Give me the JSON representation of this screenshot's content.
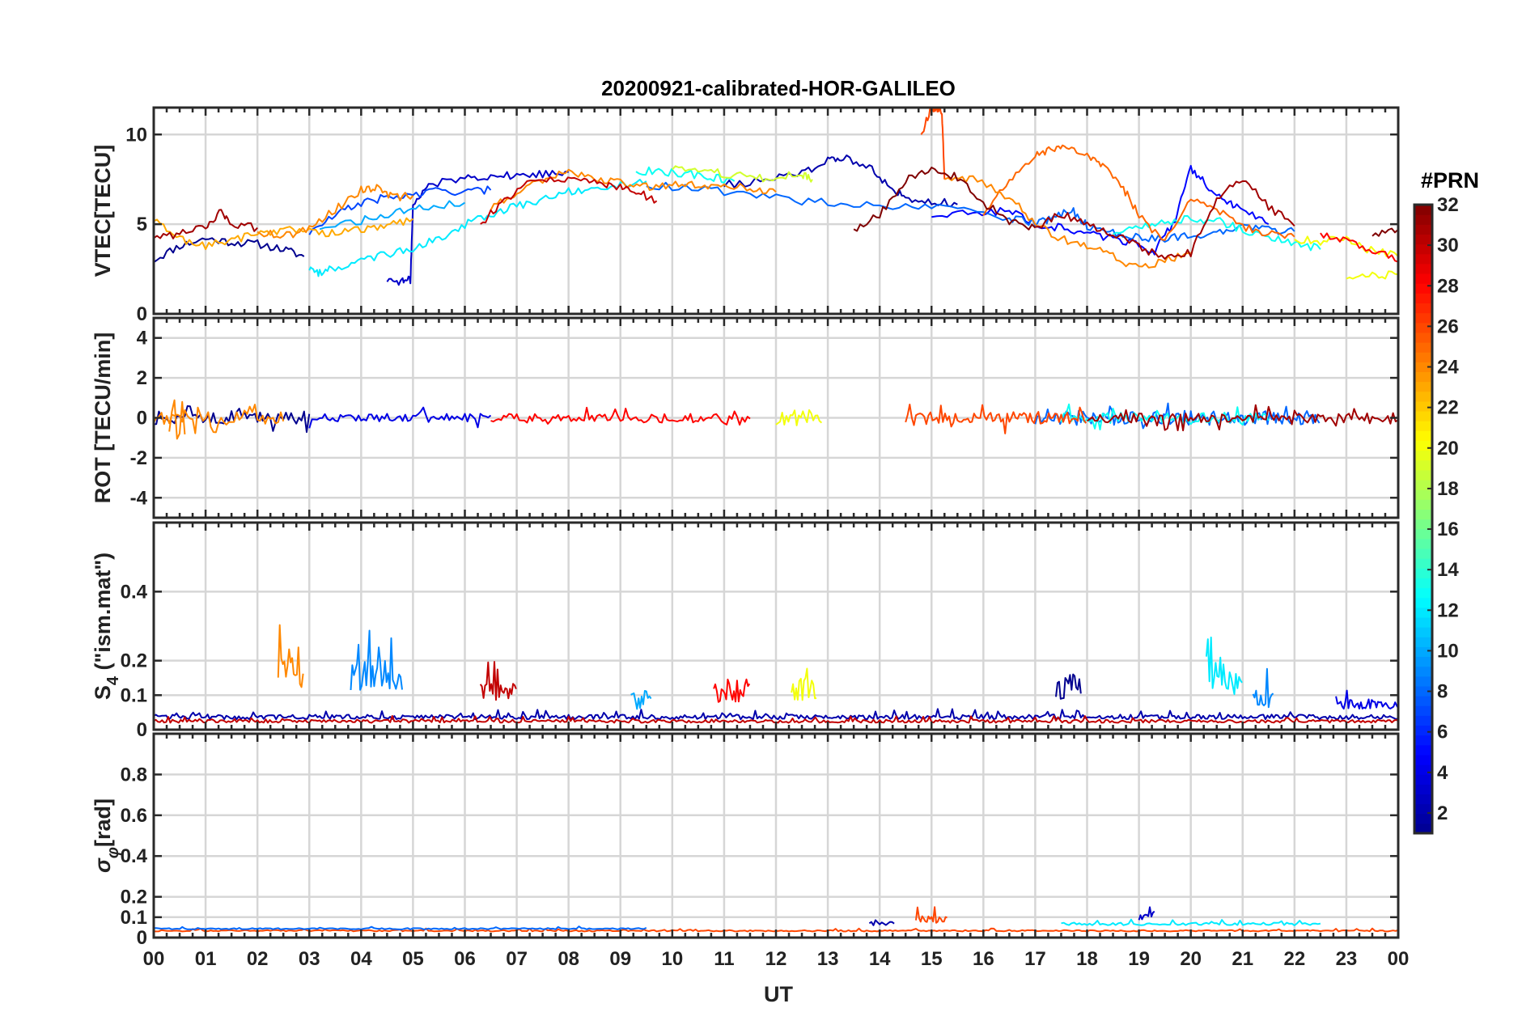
{
  "title": "20200921-calibrated-HOR-GALILEO",
  "x_axis": {
    "label": "UT",
    "tick_labels": [
      "00",
      "01",
      "02",
      "03",
      "04",
      "05",
      "06",
      "07",
      "08",
      "09",
      "10",
      "11",
      "12",
      "13",
      "14",
      "15",
      "16",
      "17",
      "18",
      "19",
      "20",
      "21",
      "22",
      "23",
      "00"
    ],
    "range_hours": [
      0,
      24
    ]
  },
  "colorbar": {
    "label": "#PRN",
    "range": [
      1,
      32
    ],
    "tick_values": [
      2,
      4,
      6,
      8,
      10,
      12,
      14,
      16,
      18,
      20,
      22,
      24,
      26,
      28,
      30,
      32
    ],
    "tick_labels": [
      "2",
      "4",
      "6",
      "8",
      "10",
      "12",
      "14",
      "16",
      "18",
      "20",
      "22",
      "24",
      "26",
      "28",
      "30",
      "32"
    ],
    "colors": [
      "#00008f",
      "#0000ff",
      "#0080ff",
      "#00ffff",
      "#80ff80",
      "#ffff00",
      "#ff8000",
      "#ff0000",
      "#800000"
    ]
  },
  "chart_data": [
    {
      "id": "vtec",
      "type": "line",
      "ylabel": "VTEC[TECU]",
      "ylim": [
        0,
        11.5
      ],
      "yticks": [
        0,
        5,
        10
      ],
      "ytick_labels": [
        "0",
        "5",
        "10"
      ],
      "series": [
        {
          "prn": 1,
          "x": [
            0,
            0.5,
            1,
            1.5,
            2,
            2.5,
            2.9
          ],
          "y": [
            3.0,
            3.8,
            4.2,
            4.0,
            3.9,
            3.6,
            3.2
          ]
        },
        {
          "prn": 3,
          "x": [
            4.5,
            4.8,
            4.95,
            5,
            5.3,
            6,
            6.5,
            7,
            7.5,
            8
          ],
          "y": [
            1.9,
            1.8,
            1.9,
            6.0,
            7.2,
            7.6,
            7.7,
            7.7,
            7.8,
            7.9
          ]
        },
        {
          "prn": 2,
          "x": [
            11,
            11.8,
            12.5,
            13,
            13.3,
            13.8,
            14.2,
            14.5,
            15,
            15.5
          ],
          "y": [
            7.2,
            7.4,
            7.9,
            8.5,
            8.7,
            8.3,
            7.0,
            6.5,
            6.3,
            6.1
          ]
        },
        {
          "prn": 5,
          "x": [
            15,
            15.8,
            16.5,
            17,
            17.5,
            18,
            18.5,
            19,
            19.3,
            19.7,
            20,
            20.3,
            20.7,
            21,
            21.5
          ],
          "y": [
            5.5,
            5.6,
            5.8,
            5.0,
            4.8,
            4.5,
            4.2,
            3.9,
            3.5,
            5.2,
            8.1,
            7.2,
            6.2,
            5.8,
            5.0
          ]
        },
        {
          "prn": 7,
          "x": [
            3,
            3.5,
            4,
            4.5,
            5,
            5.5,
            6,
            6.5
          ],
          "y": [
            4.5,
            5.5,
            6.2,
            6.5,
            6.6,
            6.9,
            6.8,
            6.9
          ]
        },
        {
          "prn": 8,
          "x": [
            9.5,
            10.5,
            11.5,
            12.5,
            13.5,
            14.5,
            15.5,
            16.5,
            17,
            17.3,
            17.7,
            18,
            18.5,
            19,
            19.5,
            20,
            20.5,
            21,
            21.5,
            22
          ],
          "y": [
            7.2,
            7.0,
            6.6,
            6.3,
            6.1,
            6.0,
            5.8,
            5.3,
            5.1,
            5.3,
            5.8,
            4.9,
            4.5,
            4.3,
            4.2,
            4.4,
            4.5,
            4.8,
            4.7,
            4.6
          ]
        },
        {
          "prn": 10,
          "x": [
            3.2,
            4,
            4.6,
            5.2,
            6
          ],
          "y": [
            4.8,
            5.2,
            5.6,
            5.9,
            6.2
          ]
        },
        {
          "prn": 12,
          "x": [
            3.0,
            3.2,
            3.5,
            4,
            4.5,
            5,
            5.5,
            6,
            6.5,
            7,
            7.5,
            8,
            8.5,
            9,
            9.5
          ],
          "y": [
            2.5,
            2.3,
            2.6,
            3.0,
            3.3,
            3.7,
            4.2,
            5.0,
            5.6,
            6.0,
            6.4,
            6.8,
            7.0,
            7.2,
            7.4
          ]
        },
        {
          "prn": 13,
          "x": [
            9.3,
            9.8,
            10.3,
            10.8,
            11.2
          ],
          "y": [
            8.0,
            7.9,
            7.8,
            7.6,
            7.4
          ]
        },
        {
          "prn": 13,
          "x": [
            18.5,
            19,
            19.5,
            20,
            20.5,
            21,
            21.5,
            22,
            22.5
          ],
          "y": [
            4.5,
            4.8,
            5.1,
            5.3,
            5.2,
            4.7,
            4.2,
            4.0,
            3.6
          ]
        },
        {
          "prn": 19,
          "x": [
            10,
            10.5,
            11,
            11.5,
            12,
            12.5,
            12.7
          ],
          "y": [
            8.1,
            8.0,
            7.8,
            7.6,
            7.6,
            7.8,
            7.5
          ]
        },
        {
          "prn": 20,
          "x": [
            22,
            22.5,
            23,
            23.4,
            24
          ],
          "y": [
            4.2,
            4.0,
            4.2,
            3.6,
            3.2
          ]
        },
        {
          "prn": 20,
          "x": [
            23,
            23.5,
            24
          ],
          "y": [
            2.0,
            2.1,
            2.2
          ]
        },
        {
          "prn": 23,
          "x": [
            0,
            0.5,
            1,
            1.5,
            2,
            2.5,
            3,
            3.5,
            4,
            4.5,
            5
          ],
          "y": [
            5.2,
            4.2,
            3.8,
            4.1,
            4.5,
            4.7,
            4.6,
            4.5,
            4.7,
            4.9,
            5.3
          ]
        },
        {
          "prn": 24,
          "x": [
            2,
            2.5,
            3,
            3.5,
            4,
            4.3,
            4.6,
            5
          ],
          "y": [
            4.6,
            4.3,
            4.8,
            5.8,
            6.9,
            7.1,
            6.5,
            6.6
          ]
        },
        {
          "prn": 25,
          "x": [
            16,
            16.5,
            17,
            17.3,
            17.6,
            18,
            18.3,
            18.7,
            19,
            19.5,
            20,
            20.5,
            21,
            21.5,
            22
          ],
          "y": [
            5.5,
            7.5,
            8.8,
            9.2,
            9.2,
            8.8,
            8.2,
            7.0,
            5.5,
            4.0,
            6.5,
            5.8,
            4.8,
            4.5,
            4.3
          ]
        },
        {
          "prn": 24,
          "x": [
            6.5,
            7,
            7.5,
            8,
            8.5,
            9,
            9.5,
            10,
            10.5,
            11,
            11.5,
            12
          ],
          "y": [
            5.8,
            6.8,
            7.5,
            7.9,
            7.6,
            7.3,
            7.1,
            7.2,
            7.2,
            7.1,
            7.0,
            6.8
          ]
        },
        {
          "prn": 26,
          "x": [
            14.8,
            15.0,
            15.1,
            15.2,
            15.25
          ],
          "y": [
            10.0,
            11.5,
            11.5,
            11.3,
            7.5
          ]
        },
        {
          "prn": 24,
          "x": [
            15.25,
            15.8,
            16.5,
            17,
            17.5,
            18,
            18.5,
            19,
            19.5,
            20
          ],
          "y": [
            7.5,
            7.5,
            6.5,
            5.0,
            4.2,
            3.8,
            3.2,
            2.5,
            3.0,
            3.4
          ]
        },
        {
          "prn": 28,
          "x": [
            22.5,
            23,
            23.5,
            24
          ],
          "y": [
            4.5,
            4.1,
            3.6,
            2.9
          ]
        },
        {
          "prn": 30,
          "x": [
            6.3,
            6.7,
            7.2,
            7.8,
            8.3,
            8.7,
            9.0,
            9.3,
            9.7
          ],
          "y": [
            5.0,
            6.2,
            7.3,
            7.6,
            7.4,
            7.2,
            7.0,
            6.8,
            6.3
          ]
        },
        {
          "prn": 31,
          "x": [
            0,
            0.5,
            1,
            1.3,
            1.5,
            2
          ],
          "y": [
            4.2,
            4.5,
            4.8,
            5.8,
            5.0,
            4.8
          ]
        },
        {
          "prn": 32,
          "x": [
            13.5,
            14,
            14.5,
            15,
            15.5,
            16,
            16.5,
            17
          ],
          "y": [
            4.7,
            5.5,
            7.5,
            8.0,
            7.6,
            6.2,
            5.2,
            4.8
          ]
        },
        {
          "prn": 31,
          "x": [
            17,
            17.5,
            18,
            18.5,
            19,
            19.5,
            20,
            20.5,
            21,
            21.5,
            22
          ],
          "y": [
            4.8,
            5.6,
            5.0,
            4.5,
            3.8,
            3.0,
            3.4,
            6.5,
            7.5,
            6.0,
            4.9
          ]
        },
        {
          "prn": 32,
          "x": [
            23.5,
            24
          ],
          "y": [
            4.3,
            4.7
          ]
        }
      ]
    },
    {
      "id": "rot",
      "type": "line",
      "ylabel": "ROT [TECU/min]",
      "ylim": [
        -5,
        5
      ],
      "yticks": [
        -4,
        -2,
        0,
        2,
        4
      ],
      "ytick_labels": [
        "-4",
        "-2",
        "0",
        "2",
        "4"
      ],
      "series": [
        {
          "prn": 1,
          "start": 0.0,
          "end": 3.0,
          "base": 0,
          "amp": 0.55,
          "step": 0.05
        },
        {
          "prn": 4,
          "start": 3.0,
          "end": 6.5,
          "base": 0,
          "amp": 0.35,
          "step": 0.05
        },
        {
          "prn": 8,
          "start": 17.0,
          "end": 22.5,
          "base": 0,
          "amp": 0.6,
          "step": 0.04
        },
        {
          "prn": 13,
          "start": 17.5,
          "end": 21.5,
          "base": 0,
          "amp": 0.45,
          "step": 0.05
        },
        {
          "prn": 20,
          "start": 12.0,
          "end": 12.9,
          "base": 0,
          "amp": 0.7,
          "step": 0.04
        },
        {
          "prn": 24,
          "start": 0.0,
          "end": 2.5,
          "base": 0,
          "amp": 0.5,
          "step": 0.05
        },
        {
          "prn": 26,
          "start": 14.5,
          "end": 18.0,
          "base": 0,
          "amp": 0.5,
          "step": 0.04
        },
        {
          "prn": 28,
          "start": 6.5,
          "end": 11.5,
          "base": 0,
          "amp": 0.35,
          "step": 0.05
        },
        {
          "prn": 31,
          "start": 18.0,
          "end": 24.0,
          "base": 0,
          "amp": 0.4,
          "step": 0.05
        },
        {
          "prn": 24,
          "start": 0.3,
          "end": 0.6,
          "base": 0,
          "amp": 1.9,
          "step": 0.05
        }
      ]
    },
    {
      "id": "s4",
      "type": "line",
      "ylabel_parts": [
        "S",
        "4",
        " (\"ism.mat\")"
      ],
      "ylim": [
        0,
        0.6
      ],
      "yticks": [
        0,
        0.1,
        0.2,
        0.4
      ],
      "ytick_labels": [
        "0",
        "0.1",
        "0.2",
        "0.4"
      ],
      "series": [
        {
          "prn": 2,
          "start": 0.0,
          "end": 24.0,
          "base": 0.03,
          "amp": 0.03,
          "step": 0.04
        },
        {
          "prn": 30,
          "start": 0.0,
          "end": 24.0,
          "base": 0.02,
          "amp": 0.02,
          "step": 0.04
        },
        {
          "prn": 24,
          "start": 2.4,
          "end": 2.9,
          "base": 0.12,
          "amp": 0.2,
          "step": 0.03
        },
        {
          "prn": 9,
          "start": 3.8,
          "end": 4.8,
          "base": 0.1,
          "amp": 0.22,
          "step": 0.03
        },
        {
          "prn": 30,
          "start": 6.3,
          "end": 7.0,
          "base": 0.08,
          "amp": 0.12,
          "step": 0.03
        },
        {
          "prn": 10,
          "start": 9.2,
          "end": 9.6,
          "base": 0.06,
          "amp": 0.12,
          "step": 0.03
        },
        {
          "prn": 28,
          "start": 10.8,
          "end": 11.5,
          "base": 0.08,
          "amp": 0.15,
          "step": 0.03
        },
        {
          "prn": 20,
          "start": 12.3,
          "end": 12.8,
          "base": 0.08,
          "amp": 0.16,
          "step": 0.03
        },
        {
          "prn": 1,
          "start": 17.4,
          "end": 17.9,
          "base": 0.08,
          "amp": 0.18,
          "step": 0.03
        },
        {
          "prn": 12,
          "start": 20.3,
          "end": 21.0,
          "base": 0.1,
          "amp": 0.25,
          "step": 0.03
        },
        {
          "prn": 9,
          "start": 21.2,
          "end": 21.6,
          "base": 0.06,
          "amp": 0.12,
          "step": 0.03
        },
        {
          "prn": 4,
          "start": 22.8,
          "end": 24.0,
          "base": 0.06,
          "amp": 0.06,
          "step": 0.03
        }
      ]
    },
    {
      "id": "sigma",
      "type": "line",
      "ylabel_parts": [
        "σ",
        "φ",
        "[rad]"
      ],
      "ylim": [
        0,
        1.0
      ],
      "yticks": [
        0,
        0.1,
        0.2,
        0.4,
        0.6,
        0.8
      ],
      "ytick_labels": [
        "0",
        "0.1",
        "0.2",
        "0.4",
        "0.6",
        "0.8"
      ],
      "series": [
        {
          "prn": 26,
          "start": 0.0,
          "end": 24.0,
          "base": 0.03,
          "amp": 0.015,
          "step": 0.05
        },
        {
          "prn": 8,
          "start": 0.0,
          "end": 9.5,
          "base": 0.04,
          "amp": 0.015,
          "step": 0.05
        },
        {
          "prn": 12,
          "start": 17.5,
          "end": 22.5,
          "base": 0.06,
          "amp": 0.03,
          "step": 0.05
        },
        {
          "prn": 2,
          "start": 13.8,
          "end": 14.3,
          "base": 0.06,
          "amp": 0.04,
          "step": 0.04
        },
        {
          "prn": 26,
          "start": 14.7,
          "end": 15.3,
          "base": 0.07,
          "amp": 0.09,
          "step": 0.03
        },
        {
          "prn": 3,
          "start": 19.0,
          "end": 19.3,
          "base": 0.08,
          "amp": 0.08,
          "step": 0.03
        }
      ]
    }
  ]
}
